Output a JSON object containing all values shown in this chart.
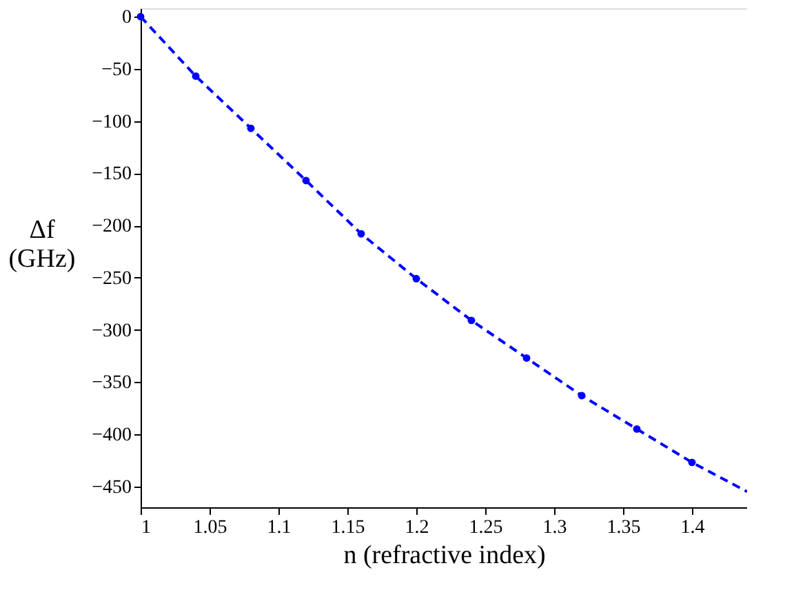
{
  "chart_data": {
    "type": "line",
    "xlabel": "n (refractive index)",
    "ylabel": "Δf\n(GHz)",
    "xlim": [
      1,
      1.44
    ],
    "xticks": [
      1,
      1.05,
      1.1,
      1.15,
      1.2,
      1.25,
      1.3,
      1.35,
      1.4
    ],
    "ylim": [
      -470,
      8
    ],
    "yticks": [
      0,
      -50,
      -100,
      -150,
      -200,
      -250,
      -300,
      -350,
      -400,
      -450
    ],
    "grid": false,
    "line_style": "dashed",
    "series": [
      {
        "marker": "none",
        "color": "#0000ff",
        "x": [
          1,
          1.04,
          1.08,
          1.12,
          1.16,
          1.2,
          1.24,
          1.28,
          1.32,
          1.36,
          1.4,
          1.44
        ],
        "values": [
          0,
          -57,
          -107,
          -157,
          -208,
          -251,
          -291,
          -327,
          -363,
          -395,
          -427,
          -455
        ]
      },
      {
        "type": "scatter",
        "marker": "circle",
        "color": "#0000ff",
        "x": [
          1,
          1.04,
          1.08,
          1.12,
          1.16,
          1.2,
          1.24,
          1.28,
          1.32,
          1.36,
          1.4
        ],
        "values": [
          0,
          -57,
          -107,
          -157,
          -208,
          -251,
          -291,
          -327,
          -363,
          -395,
          -427
        ]
      }
    ]
  }
}
